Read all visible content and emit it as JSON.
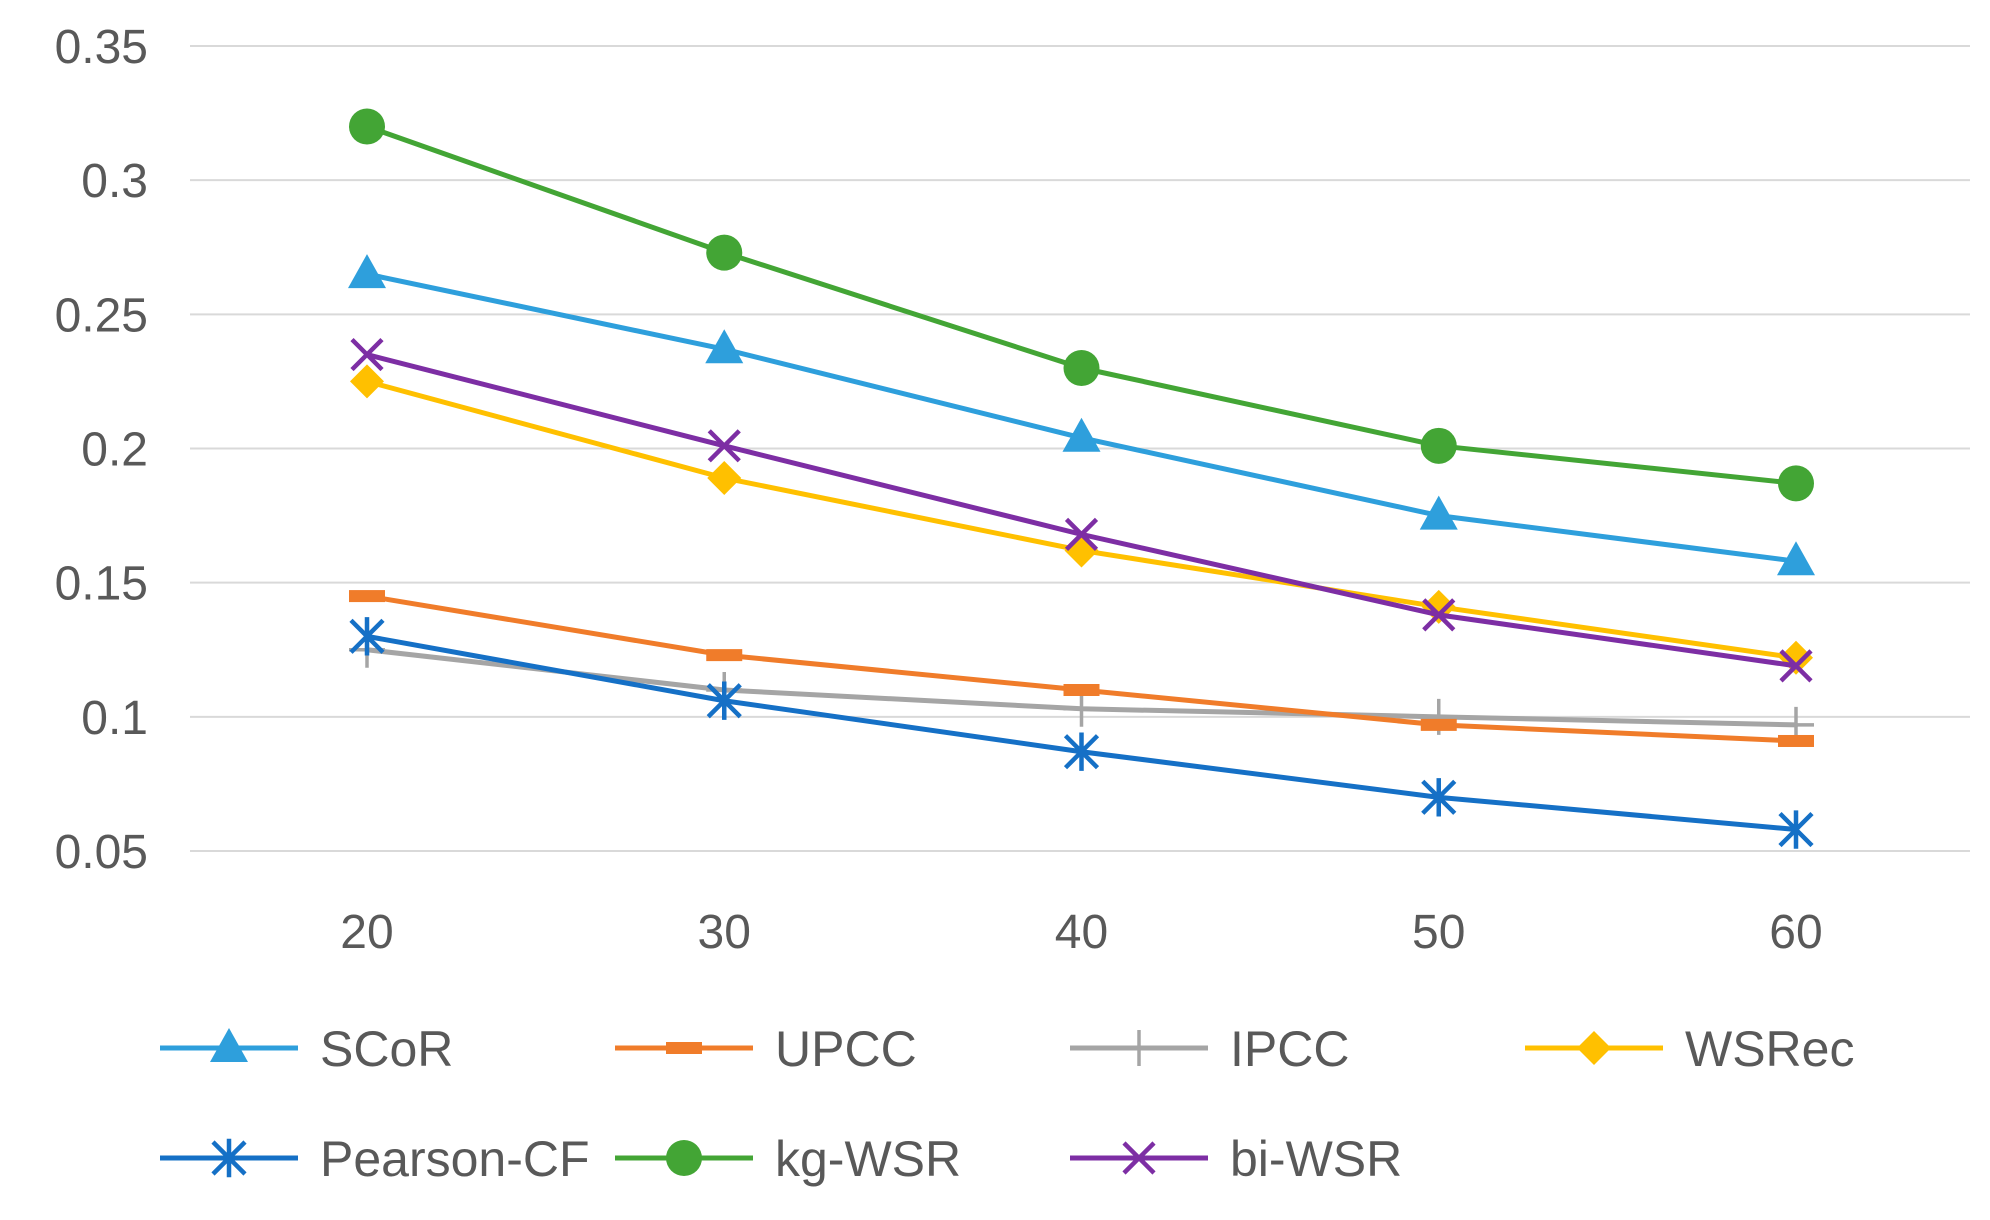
{
  "chart_data": {
    "type": "line",
    "title": "",
    "xlabel": "",
    "ylabel": "",
    "x": [
      20,
      30,
      40,
      50,
      60
    ],
    "x_tick_labels": [
      "20",
      "30",
      "40",
      "50",
      "60"
    ],
    "ylim": [
      0.05,
      0.35
    ],
    "y_ticks": [
      0.05,
      0.1,
      0.15,
      0.2,
      0.25,
      0.3,
      0.35
    ],
    "y_tick_labels": [
      "0.05",
      "0.1",
      "0.15",
      "0.2",
      "0.25",
      "0.3",
      "0.35"
    ],
    "grid": "horizontal",
    "legend_position": "bottom",
    "series": [
      {
        "name": "SCoR",
        "color": "#2e9fdc",
        "marker": "triangle",
        "values": [
          0.265,
          0.237,
          0.204,
          0.175,
          0.158
        ]
      },
      {
        "name": "UPCC",
        "color": "#f07c2a",
        "marker": "dash",
        "values": [
          0.145,
          0.123,
          0.11,
          0.097,
          0.091
        ]
      },
      {
        "name": "IPCC",
        "color": "#a5a5a5",
        "marker": "plus",
        "values": [
          0.125,
          0.11,
          0.103,
          0.1,
          0.097
        ]
      },
      {
        "name": "WSRec",
        "color": "#ffc000",
        "marker": "diamond",
        "values": [
          0.225,
          0.189,
          0.162,
          0.141,
          0.122
        ]
      },
      {
        "name": "Pearson-CF",
        "color": "#1570c6",
        "marker": "asterisk",
        "values": [
          0.13,
          0.106,
          0.087,
          0.07,
          0.058
        ]
      },
      {
        "name": "kg-WSR",
        "color": "#43a535",
        "marker": "circle",
        "values": [
          0.32,
          0.273,
          0.23,
          0.201,
          0.187
        ]
      },
      {
        "name": "bi-WSR",
        "color": "#7d2ea4",
        "marker": "x",
        "values": [
          0.235,
          0.201,
          0.168,
          0.138,
          0.119
        ]
      }
    ]
  }
}
